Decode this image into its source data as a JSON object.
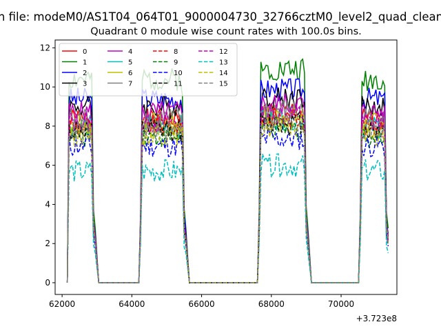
{
  "chart_data": {
    "type": "line",
    "suptitle": "n file: modeM0/AS1T04_064T01_9000004730_32766cztM0_level2_quad_clean",
    "title": "Quadrant 0 module wise count rates with 100.0s bins.",
    "offset_label": "+3.723e8",
    "xlabel": "",
    "ylabel": "",
    "xlim": [
      61800,
      71600
    ],
    "ylim": [
      -0.6,
      12.4
    ],
    "xticks": [
      62000,
      64000,
      66000,
      68000,
      70000
    ],
    "yticks": [
      0,
      2,
      4,
      6,
      8,
      10,
      12
    ],
    "legend_position": "top-left",
    "legend_columns": 4,
    "x_units_note": "x values are offsets added to 3.723e8",
    "segments": [
      [
        62200,
        62900
      ],
      [
        64300,
        65500
      ],
      [
        67700,
        69000
      ],
      [
        70600,
        71300
      ]
    ],
    "series": [
      {
        "name": "0",
        "color": "#ff0000",
        "dash": "solid",
        "level": 8.3,
        "seed": 1
      },
      {
        "name": "1",
        "color": "#008000",
        "dash": "solid",
        "level": 10.4,
        "seed": 2
      },
      {
        "name": "2",
        "color": "#0000ff",
        "dash": "solid",
        "level": 9.4,
        "seed": 3
      },
      {
        "name": "3",
        "color": "#000000",
        "dash": "solid",
        "level": 9.0,
        "seed": 4
      },
      {
        "name": "4",
        "color": "#bf00bf",
        "dash": "solid",
        "level": 8.7,
        "seed": 5
      },
      {
        "name": "5",
        "color": "#00bfbf",
        "dash": "solid",
        "level": 8.0,
        "seed": 6
      },
      {
        "name": "6",
        "color": "#bfbf00",
        "dash": "solid",
        "level": 8.1,
        "seed": 7
      },
      {
        "name": "7",
        "color": "#808080",
        "dash": "solid",
        "level": 8.4,
        "seed": 8
      },
      {
        "name": "8",
        "color": "#ff0000",
        "dash": "dashed",
        "level": 8.0,
        "seed": 9
      },
      {
        "name": "9",
        "color": "#008000",
        "dash": "dashed",
        "level": 7.5,
        "seed": 10
      },
      {
        "name": "10",
        "color": "#0000ff",
        "dash": "dashed",
        "level": 7.0,
        "seed": 11
      },
      {
        "name": "11",
        "color": "#000000",
        "dash": "dashed",
        "level": 7.8,
        "seed": 12
      },
      {
        "name": "12",
        "color": "#bf00bf",
        "dash": "dashed",
        "level": 8.2,
        "seed": 13
      },
      {
        "name": "13",
        "color": "#00bfbf",
        "dash": "dashed",
        "level": 5.7,
        "seed": 14
      },
      {
        "name": "14",
        "color": "#bfbf00",
        "dash": "dashed",
        "level": 7.6,
        "seed": 15
      },
      {
        "name": "15",
        "color": "#808080",
        "dash": "dashed",
        "level": 7.8,
        "seed": 16
      }
    ]
  }
}
